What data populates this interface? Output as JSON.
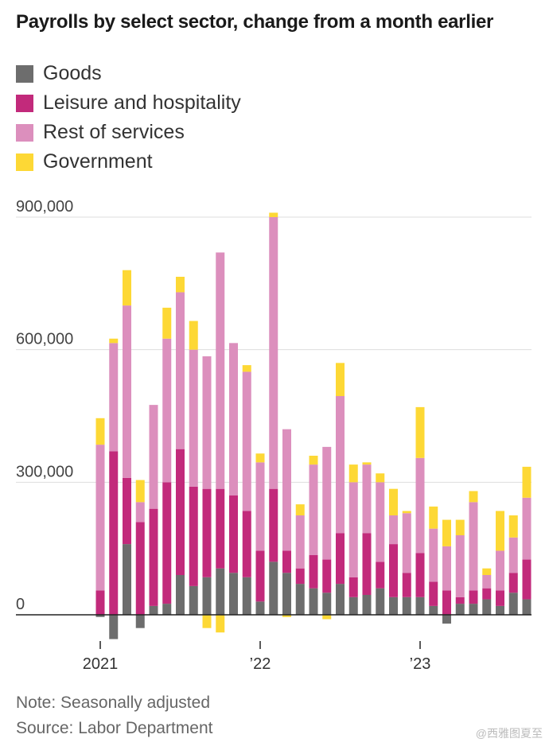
{
  "title": "Payrolls by select sector, change from a month earlier",
  "footer": {
    "note": "Note: Seasonally adjusted",
    "source": "Source: Labor Department",
    "watermark": "@西雅图夏至"
  },
  "colors": {
    "goods": "#6d6d6d",
    "leisure": "#c22a7b",
    "rest": "#dc8fbd",
    "government": "#fdd835",
    "grid": "#dddddd",
    "axis": "#222222"
  },
  "chart_data": {
    "type": "bar",
    "stacked": true,
    "ylim": [
      -60000,
      920000
    ],
    "y_ticks": [
      0,
      300000,
      600000,
      900000
    ],
    "y_tick_labels": [
      "0",
      "300,000",
      "600,000",
      "900,000"
    ],
    "x_tick_labels": [
      {
        "index": 0,
        "label": "2021"
      },
      {
        "index": 12,
        "label": "’22"
      },
      {
        "index": 24,
        "label": "’23"
      }
    ],
    "legend_position": "top-left",
    "grid": true,
    "series": [
      {
        "name": "Goods",
        "key": "goods",
        "values": [
          -5000,
          -55000,
          160000,
          -30000,
          20000,
          25000,
          90000,
          65000,
          85000,
          105000,
          95000,
          85000,
          30000,
          120000,
          95000,
          70000,
          60000,
          50000,
          70000,
          40000,
          45000,
          60000,
          40000,
          40000,
          40000,
          20000,
          -20000,
          25000,
          25000,
          35000,
          20000,
          50000,
          35000
        ]
      },
      {
        "name": "Leisure and hospitality",
        "key": "leisure",
        "values": [
          55000,
          370000,
          150000,
          210000,
          220000,
          275000,
          285000,
          225000,
          200000,
          180000,
          175000,
          150000,
          115000,
          165000,
          50000,
          35000,
          75000,
          75000,
          115000,
          45000,
          140000,
          60000,
          120000,
          55000,
          100000,
          55000,
          55000,
          15000,
          30000,
          25000,
          35000,
          45000,
          90000
        ]
      },
      {
        "name": "Rest of services",
        "key": "rest",
        "values": [
          330000,
          245000,
          390000,
          45000,
          235000,
          325000,
          355000,
          310000,
          300000,
          535000,
          345000,
          315000,
          200000,
          615000,
          275000,
          120000,
          205000,
          255000,
          310000,
          215000,
          155000,
          180000,
          65000,
          135000,
          215000,
          120000,
          100000,
          140000,
          200000,
          30000,
          90000,
          80000,
          140000
        ]
      },
      {
        "name": "Government",
        "key": "government",
        "values": [
          60000,
          10000,
          80000,
          50000,
          0,
          70000,
          35000,
          65000,
          -30000,
          -40000,
          0,
          15000,
          20000,
          10000,
          -5000,
          25000,
          20000,
          -10000,
          75000,
          40000,
          5000,
          20000,
          60000,
          5000,
          115000,
          50000,
          60000,
          35000,
          25000,
          15000,
          90000,
          50000,
          70000
        ]
      }
    ]
  }
}
